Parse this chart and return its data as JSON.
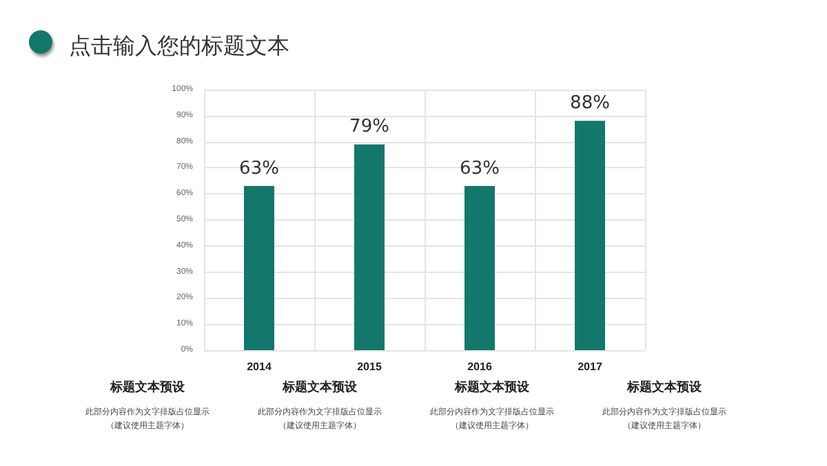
{
  "chart_data": {
    "type": "bar",
    "title": "点击输入您的标题文本",
    "categories": [
      "2014",
      "2015",
      "2016",
      "2017"
    ],
    "values": [
      63,
      79,
      63,
      88
    ],
    "color": "#13776b",
    "value_labels": [
      "63%",
      "79%",
      "63%",
      "88%"
    ],
    "ylim": [
      0,
      100
    ],
    "yticks": [
      {
        "value": 0,
        "label": "0%"
      },
      {
        "value": 10,
        "label": "10%"
      },
      {
        "value": 20,
        "label": "20%"
      },
      {
        "value": 30,
        "label": "30%"
      },
      {
        "value": 40,
        "label": "40%"
      },
      {
        "value": 50,
        "label": "50%"
      },
      {
        "value": 60,
        "label": "60%"
      },
      {
        "value": 70,
        "label": "70%"
      },
      {
        "value": 80,
        "label": "80%"
      },
      {
        "value": 90,
        "label": "90%"
      },
      {
        "value": 100,
        "label": "100%"
      }
    ],
    "grid": true,
    "annotations": [
      "标题文本预设",
      "此部分内容作为文字排版占位显示",
      "（建议使用主题字体）",
      "标题文本预设",
      "此部分内容作为文字排版占位显示",
      "（建议使用主题字体）",
      "标题文本预设",
      "此部分内容作为文字排版占位显示",
      "（建议使用主题字体）",
      "标题文本预设",
      "此部分内容作为文字排版占位显示",
      "（建议使用主题字体）"
    ]
  }
}
